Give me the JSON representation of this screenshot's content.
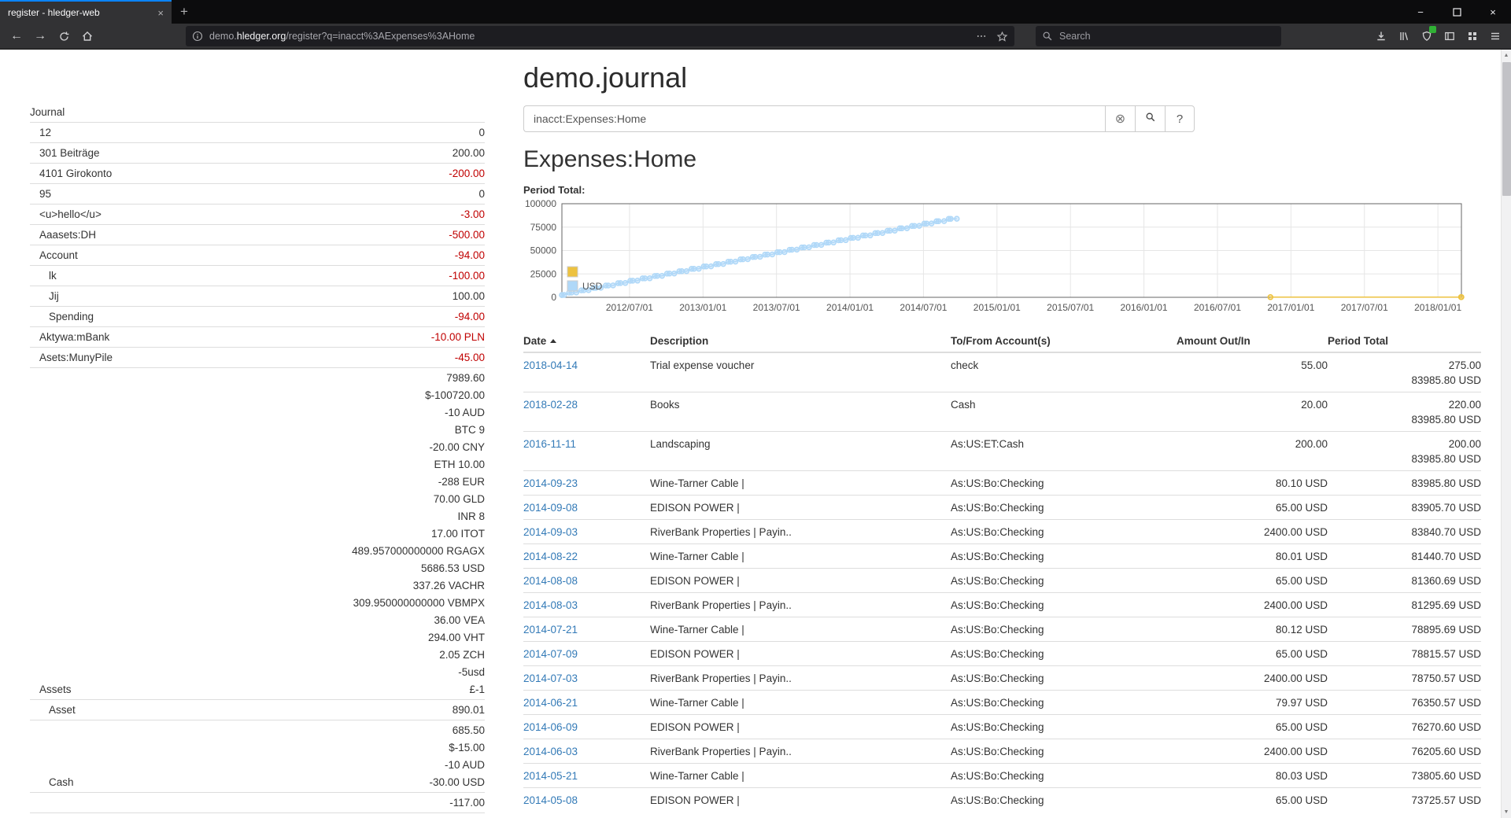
{
  "colors": {
    "accent": "#0a84ff",
    "link": "#337ab7",
    "negative": "#c00000"
  },
  "browser": {
    "tab": {
      "title": "register - hledger-web"
    },
    "url": {
      "prefix": "demo.",
      "domain": "hledger.org",
      "path": "/register?q=inacct%3AExpenses%3AHome"
    },
    "search_placeholder": "Search",
    "icons": {
      "close": "×",
      "minimize": "−",
      "new_tab": "+",
      "back": "←",
      "forward": "→",
      "clear": "⊗"
    }
  },
  "page": {
    "title": "demo.journal",
    "query": "inacct:Expenses:Home",
    "help_label": "?",
    "heading": "Expenses:Home",
    "period_total_label": "Period Total:"
  },
  "sidebar": {
    "journal_label": "Journal",
    "accounts": [
      {
        "name": "12",
        "indent": 1,
        "amounts": [
          {
            "text": "0",
            "neg": false
          }
        ]
      },
      {
        "name": "301 Beiträge",
        "indent": 1,
        "amounts": [
          {
            "text": "200.00",
            "neg": false
          }
        ]
      },
      {
        "name": "4101 Girokonto",
        "indent": 1,
        "amounts": [
          {
            "text": "-200.00",
            "neg": true
          }
        ]
      },
      {
        "name": "95",
        "indent": 1,
        "amounts": [
          {
            "text": "0",
            "neg": false
          }
        ]
      },
      {
        "name": "<u>hello</u>",
        "indent": 1,
        "amounts": [
          {
            "text": "-3.00",
            "neg": true
          }
        ]
      },
      {
        "name": "Aaasets:DH",
        "indent": 1,
        "amounts": [
          {
            "text": "-500.00",
            "neg": true
          }
        ]
      },
      {
        "name": "Account",
        "indent": 1,
        "amounts": [
          {
            "text": "-94.00",
            "neg": true
          }
        ]
      },
      {
        "name": "lk",
        "indent": 2,
        "amounts": [
          {
            "text": "-100.00",
            "neg": true
          }
        ]
      },
      {
        "name": "Jij",
        "indent": 2,
        "amounts": [
          {
            "text": "100.00",
            "neg": false
          }
        ]
      },
      {
        "name": "Spending",
        "indent": 2,
        "amounts": [
          {
            "text": "-94.00",
            "neg": true
          }
        ]
      },
      {
        "name": "Aktywa:mBank",
        "indent": 1,
        "amounts": [
          {
            "text": "-10.00 PLN",
            "neg": true
          }
        ]
      },
      {
        "name": "Asets:MunyPile",
        "indent": 1,
        "amounts": [
          {
            "text": "-45.00",
            "neg": true
          }
        ]
      },
      {
        "name": "Assets",
        "indent": 1,
        "amounts": [
          {
            "text": "7989.60",
            "neg": false
          },
          {
            "text": "$-100720.00",
            "neg": false
          },
          {
            "text": "-10 AUD",
            "neg": false
          },
          {
            "text": "BTC 9",
            "neg": false
          },
          {
            "text": "-20.00 CNY",
            "neg": false
          },
          {
            "text": "ETH 10.00",
            "neg": false
          },
          {
            "text": "-288 EUR",
            "neg": false
          },
          {
            "text": "70.00 GLD",
            "neg": false
          },
          {
            "text": "INR 8",
            "neg": false
          },
          {
            "text": "17.00 ITOT",
            "neg": false
          },
          {
            "text": "489.957000000000 RGAGX",
            "neg": false
          },
          {
            "text": "5686.53 USD",
            "neg": false
          },
          {
            "text": "337.26 VACHR",
            "neg": false
          },
          {
            "text": "309.950000000000 VBMPX",
            "neg": false
          },
          {
            "text": "36.00 VEA",
            "neg": false
          },
          {
            "text": "294.00 VHT",
            "neg": false
          },
          {
            "text": "2.05 ZCH",
            "neg": false
          },
          {
            "text": "-5usd",
            "neg": false
          },
          {
            "text": "£-1",
            "neg": false
          }
        ]
      },
      {
        "name": "Asset",
        "indent": 2,
        "amounts": [
          {
            "text": "890.01",
            "neg": false
          }
        ]
      },
      {
        "name": "Cash",
        "indent": 2,
        "amounts": [
          {
            "text": "685.50",
            "neg": false
          },
          {
            "text": "$-15.00",
            "neg": false
          },
          {
            "text": "-10 AUD",
            "neg": false
          },
          {
            "text": "-30.00 USD",
            "neg": false
          }
        ]
      },
      {
        "name": "",
        "indent": 2,
        "amounts": [
          {
            "text": "-117.00",
            "neg": false
          }
        ]
      }
    ]
  },
  "register": {
    "columns": [
      "Date",
      "Description",
      "To/From Account(s)",
      "Amount Out/In",
      "Period Total"
    ],
    "rows": [
      {
        "date": "2018-04-14",
        "description": "Trial expense voucher",
        "account": "check",
        "amount": [
          "55.00"
        ],
        "total": [
          "275.00",
          "83985.80 USD"
        ]
      },
      {
        "date": "2018-02-28",
        "description": "Books",
        "account": "Cash",
        "amount": [
          "20.00"
        ],
        "total": [
          "220.00",
          "83985.80 USD"
        ]
      },
      {
        "date": "2016-11-11",
        "description": "Landscaping",
        "account": "As:US:ET:Cash",
        "amount": [
          "200.00"
        ],
        "total": [
          "200.00",
          "83985.80 USD"
        ]
      },
      {
        "date": "2014-09-23",
        "description": "Wine-Tarner Cable |",
        "account": "As:US:Bo:Checking",
        "amount": [
          "80.10 USD"
        ],
        "total": [
          "83985.80 USD"
        ]
      },
      {
        "date": "2014-09-08",
        "description": "EDISON POWER |",
        "account": "As:US:Bo:Checking",
        "amount": [
          "65.00 USD"
        ],
        "total": [
          "83905.70 USD"
        ]
      },
      {
        "date": "2014-09-03",
        "description": "RiverBank Properties | Payin..",
        "account": "As:US:Bo:Checking",
        "amount": [
          "2400.00 USD"
        ],
        "total": [
          "83840.70 USD"
        ]
      },
      {
        "date": "2014-08-22",
        "description": "Wine-Tarner Cable |",
        "account": "As:US:Bo:Checking",
        "amount": [
          "80.01 USD"
        ],
        "total": [
          "81440.70 USD"
        ]
      },
      {
        "date": "2014-08-08",
        "description": "EDISON POWER |",
        "account": "As:US:Bo:Checking",
        "amount": [
          "65.00 USD"
        ],
        "total": [
          "81360.69 USD"
        ]
      },
      {
        "date": "2014-08-03",
        "description": "RiverBank Properties | Payin..",
        "account": "As:US:Bo:Checking",
        "amount": [
          "2400.00 USD"
        ],
        "total": [
          "81295.69 USD"
        ]
      },
      {
        "date": "2014-07-21",
        "description": "Wine-Tarner Cable |",
        "account": "As:US:Bo:Checking",
        "amount": [
          "80.12 USD"
        ],
        "total": [
          "78895.69 USD"
        ]
      },
      {
        "date": "2014-07-09",
        "description": "EDISON POWER |",
        "account": "As:US:Bo:Checking",
        "amount": [
          "65.00 USD"
        ],
        "total": [
          "78815.57 USD"
        ]
      },
      {
        "date": "2014-07-03",
        "description": "RiverBank Properties | Payin..",
        "account": "As:US:Bo:Checking",
        "amount": [
          "2400.00 USD"
        ],
        "total": [
          "78750.57 USD"
        ]
      },
      {
        "date": "2014-06-21",
        "description": "Wine-Tarner Cable |",
        "account": "As:US:Bo:Checking",
        "amount": [
          "79.97 USD"
        ],
        "total": [
          "76350.57 USD"
        ]
      },
      {
        "date": "2014-06-09",
        "description": "EDISON POWER |",
        "account": "As:US:Bo:Checking",
        "amount": [
          "65.00 USD"
        ],
        "total": [
          "76270.60 USD"
        ]
      },
      {
        "date": "2014-06-03",
        "description": "RiverBank Properties | Payin..",
        "account": "As:US:Bo:Checking",
        "amount": [
          "2400.00 USD"
        ],
        "total": [
          "76205.60 USD"
        ]
      },
      {
        "date": "2014-05-21",
        "description": "Wine-Tarner Cable |",
        "account": "As:US:Bo:Checking",
        "amount": [
          "80.03 USD"
        ],
        "total": [
          "73805.60 USD"
        ]
      },
      {
        "date": "2014-05-08",
        "description": "EDISON POWER |",
        "account": "As:US:Bo:Checking",
        "amount": [
          "65.00 USD"
        ],
        "total": [
          "73725.57 USD"
        ]
      }
    ]
  },
  "chart_data": {
    "type": "line",
    "title": "Period Total:",
    "x_axis": {
      "domain": [
        2012.04,
        2018.16
      ],
      "ticks": [
        "2012/07/01",
        "2013/01/01",
        "2013/07/01",
        "2014/01/01",
        "2014/07/01",
        "2015/01/01",
        "2015/07/01",
        "2016/01/01",
        "2016/07/01",
        "2017/01/01",
        "2017/07/01",
        "2018/01/01"
      ]
    },
    "y_axis": {
      "range": [
        0,
        100000
      ],
      "ticks": [
        0,
        25000,
        50000,
        75000,
        100000
      ]
    },
    "legend_position": "inside-bottom-left",
    "series": [
      {
        "name": "",
        "color": "#edc240",
        "fill": "rgba(237,194,64,0.4)",
        "points": [
          [
            "2016-11-11",
            200
          ],
          [
            "2018-02-28",
            220
          ],
          [
            "2018-04-14",
            275
          ]
        ]
      },
      {
        "name": "USD",
        "color": "#afd8f8",
        "fill": "rgba(175,216,248,0.45)",
        "points": [
          [
            "2012-01-03",
            2400
          ],
          [
            "2012-01-09",
            2465
          ],
          [
            "2012-01-21",
            2545
          ],
          [
            "2012-02-03",
            4945
          ],
          [
            "2012-02-09",
            5010
          ],
          [
            "2012-02-21",
            5090
          ],
          [
            "2012-03-03",
            7490
          ],
          [
            "2012-03-09",
            7555
          ],
          [
            "2012-03-21",
            7635
          ],
          [
            "2012-04-03",
            10035
          ],
          [
            "2012-04-09",
            10100
          ],
          [
            "2012-04-21",
            10180
          ],
          [
            "2012-05-03",
            12580
          ],
          [
            "2012-05-09",
            12645
          ],
          [
            "2012-05-21",
            12725
          ],
          [
            "2012-06-03",
            15125
          ],
          [
            "2012-06-09",
            15190
          ],
          [
            "2012-06-21",
            15270
          ],
          [
            "2012-07-03",
            17670
          ],
          [
            "2012-07-09",
            17735
          ],
          [
            "2012-07-21",
            17815
          ],
          [
            "2012-08-03",
            20215
          ],
          [
            "2012-08-09",
            20280
          ],
          [
            "2012-08-21",
            20360
          ],
          [
            "2012-09-03",
            22760
          ],
          [
            "2012-09-09",
            22825
          ],
          [
            "2012-09-21",
            22905
          ],
          [
            "2012-10-03",
            25305
          ],
          [
            "2012-10-09",
            25370
          ],
          [
            "2012-10-21",
            25450
          ],
          [
            "2012-11-03",
            27850
          ],
          [
            "2012-11-09",
            27915
          ],
          [
            "2012-11-21",
            27995
          ],
          [
            "2012-12-03",
            30395
          ],
          [
            "2012-12-09",
            30460
          ],
          [
            "2012-12-21",
            30540
          ],
          [
            "2013-01-03",
            32940
          ],
          [
            "2013-01-09",
            33005
          ],
          [
            "2013-01-21",
            33085
          ],
          [
            "2013-02-03",
            35485
          ],
          [
            "2013-02-09",
            35550
          ],
          [
            "2013-02-21",
            35630
          ],
          [
            "2013-03-03",
            38030
          ],
          [
            "2013-03-09",
            38095
          ],
          [
            "2013-03-21",
            38175
          ],
          [
            "2013-04-03",
            40575
          ],
          [
            "2013-04-09",
            40640
          ],
          [
            "2013-04-21",
            40720
          ],
          [
            "2013-05-03",
            43120
          ],
          [
            "2013-05-09",
            43185
          ],
          [
            "2013-05-21",
            43265
          ],
          [
            "2013-06-03",
            45665
          ],
          [
            "2013-06-09",
            45730
          ],
          [
            "2013-06-21",
            45810
          ],
          [
            "2013-07-03",
            48210
          ],
          [
            "2013-07-09",
            48275
          ],
          [
            "2013-07-21",
            48355
          ],
          [
            "2013-08-03",
            50755
          ],
          [
            "2013-08-09",
            50820
          ],
          [
            "2013-08-21",
            50900
          ],
          [
            "2013-09-03",
            53300
          ],
          [
            "2013-09-09",
            53365
          ],
          [
            "2013-09-21",
            53445
          ],
          [
            "2013-10-03",
            55845
          ],
          [
            "2013-10-09",
            55910
          ],
          [
            "2013-10-21",
            55990
          ],
          [
            "2013-11-03",
            58390
          ],
          [
            "2013-11-09",
            58455
          ],
          [
            "2013-11-21",
            58535
          ],
          [
            "2013-12-03",
            60935
          ],
          [
            "2013-12-09",
            61000
          ],
          [
            "2013-12-21",
            61080
          ],
          [
            "2014-01-03",
            63480
          ],
          [
            "2014-01-09",
            63545
          ],
          [
            "2014-01-21",
            63625
          ],
          [
            "2014-02-03",
            66025
          ],
          [
            "2014-02-09",
            66090
          ],
          [
            "2014-02-21",
            66170
          ],
          [
            "2014-03-03",
            68570
          ],
          [
            "2014-03-09",
            68635
          ],
          [
            "2014-03-21",
            68715
          ],
          [
            "2014-04-03",
            71115
          ],
          [
            "2014-04-09",
            71180
          ],
          [
            "2014-04-21",
            71260
          ],
          [
            "2014-05-03",
            73660
          ],
          [
            "2014-05-08",
            73725
          ],
          [
            "2014-05-21",
            73805
          ],
          [
            "2014-06-03",
            76205
          ],
          [
            "2014-06-09",
            76270
          ],
          [
            "2014-06-21",
            76350
          ],
          [
            "2014-07-03",
            78750
          ],
          [
            "2014-07-09",
            78815
          ],
          [
            "2014-07-21",
            78895
          ],
          [
            "2014-08-03",
            81295
          ],
          [
            "2014-08-08",
            81360
          ],
          [
            "2014-08-22",
            81440
          ],
          [
            "2014-09-03",
            83840
          ],
          [
            "2014-09-08",
            83905
          ],
          [
            "2014-09-23",
            83985
          ]
        ]
      }
    ]
  }
}
